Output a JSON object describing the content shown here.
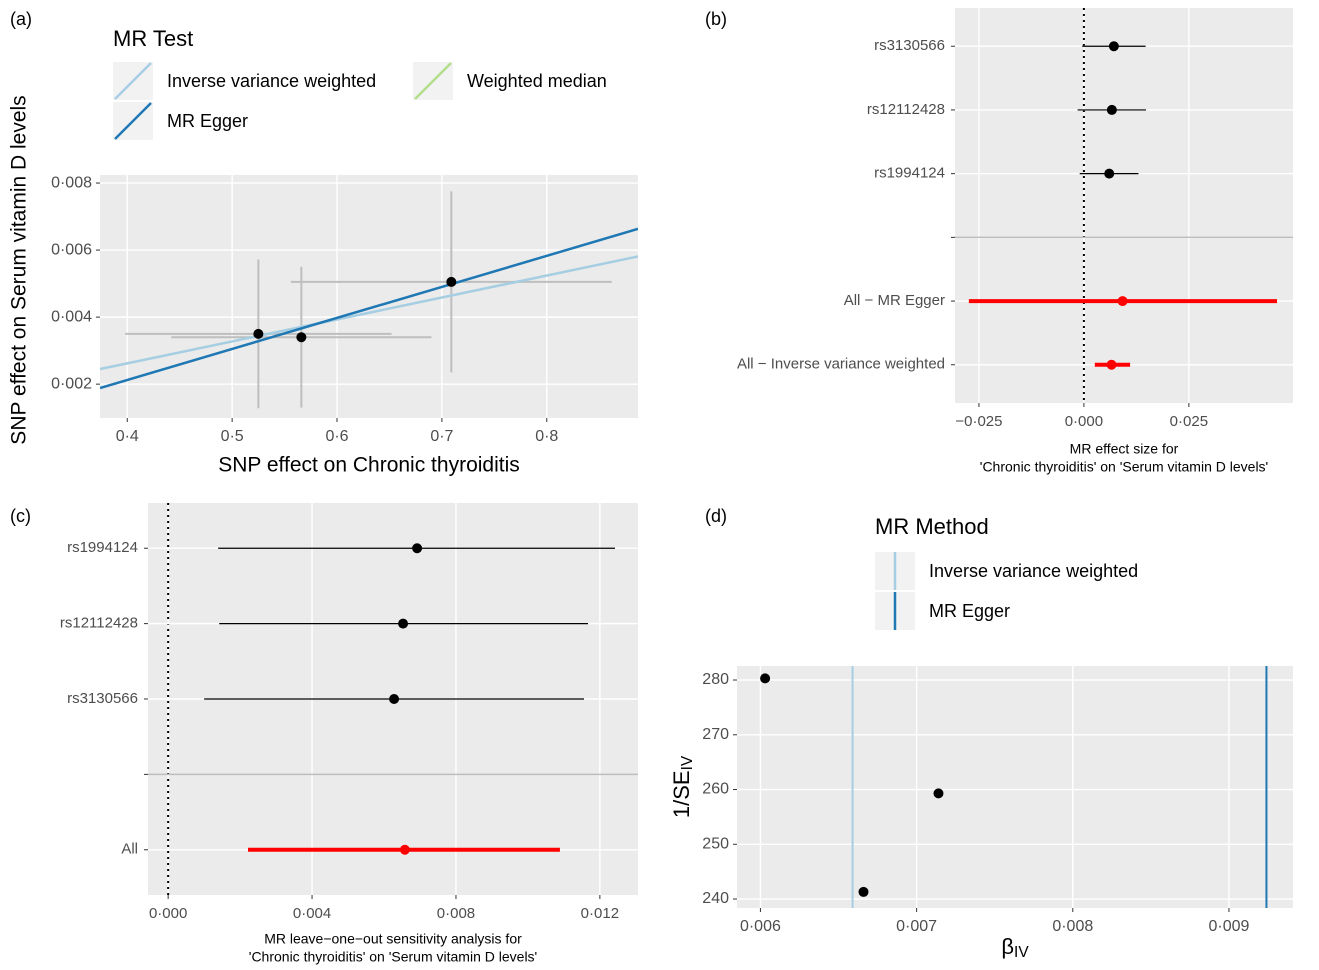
{
  "chart_data": [
    {
      "type": "scatter",
      "panel_label": "(a)",
      "xlabel": "SNP effect on Chronic thyroiditis",
      "ylabel": "SNP effect on Serum vitamin D levels",
      "x": [
        0.525,
        0.566,
        0.709
      ],
      "values": [
        0.0035,
        0.0034,
        0.00505
      ],
      "x_err": [
        0.127,
        0.124,
        0.153
      ],
      "y_err": [
        0.00222,
        0.0021,
        0.0027
      ],
      "color": "#000000",
      "err_color": "#bebebe",
      "legend_title": "MR Test",
      "lines": [
        {
          "name": "Inverse variance weighted",
          "color": "#a6cee3",
          "slope": 0.00655,
          "intercept": 0
        },
        {
          "name": "MR Egger",
          "color": "#1f78b4",
          "slope": 0.00926,
          "intercept": -0.00158
        },
        {
          "name": "Weighted median",
          "color": "#b2df8a"
        }
      ],
      "xlim": [
        0.374,
        0.887
      ],
      "ylim": [
        0.00099,
        0.00824
      ],
      "xticks": [
        {
          "value": 0.4,
          "label": "0·4"
        },
        {
          "value": 0.5,
          "label": "0·5"
        },
        {
          "value": 0.6,
          "label": "0·6"
        },
        {
          "value": 0.7,
          "label": "0·7"
        },
        {
          "value": 0.8,
          "label": "0·8"
        }
      ],
      "yticks": [
        {
          "value": 0.002,
          "label": "0·002"
        },
        {
          "value": 0.004,
          "label": "0·004"
        },
        {
          "value": 0.006,
          "label": "0·006"
        },
        {
          "value": 0.008,
          "label": "0·008"
        }
      ],
      "grid": true
    },
    {
      "type": "forest",
      "panel_label": "(b)",
      "xlabel": [
        "MR effect size for",
        "'Chronic thyroiditis' on 'Serum vitamin D levels'"
      ],
      "categories": [
        "rs3130566",
        "rs12112428",
        "rs1994124",
        null,
        "All − MR Egger",
        "All − Inverse variance weighted"
      ],
      "values": [
        0.00714,
        0.00666,
        0.00603,
        null,
        0.00921,
        0.00658
      ],
      "lower": [
        -0.0004,
        -0.0015,
        -0.001,
        null,
        -0.0274,
        0.0026
      ],
      "upper": [
        0.0147,
        0.0148,
        0.013,
        null,
        0.046,
        0.011
      ],
      "colors": [
        "#000000",
        "#000000",
        "#000000",
        null,
        "#ff0000",
        "#ff0000"
      ],
      "refline": 0,
      "xlim": [
        -0.0307,
        0.0498
      ],
      "xticks": [
        {
          "value": -0.025,
          "label": "−0·025"
        },
        {
          "value": 0,
          "label": "0·000"
        },
        {
          "value": 0.025,
          "label": "0·025"
        }
      ],
      "grid": true
    },
    {
      "type": "forest",
      "panel_label": "(c)",
      "xlabel": [
        "MR leave−one−out sensitivity analysis for",
        "'Chronic thyroiditis' on 'Serum vitamin D levels'"
      ],
      "categories": [
        "rs1994124",
        "rs12112428",
        "rs3130566",
        null,
        "All"
      ],
      "values": [
        0.00692,
        0.00653,
        0.00628,
        null,
        0.00658
      ],
      "lower": [
        0.00139,
        0.00142,
        0.001,
        null,
        0.00222
      ],
      "upper": [
        0.01242,
        0.01167,
        0.01156,
        null,
        0.01089
      ],
      "colors": [
        "#000000",
        "#000000",
        "#000000",
        null,
        "#ff0000"
      ],
      "refline": 0,
      "xlim": [
        -0.00056,
        0.01306
      ],
      "xticks": [
        {
          "value": 0,
          "label": "0·000"
        },
        {
          "value": 0.004,
          "label": "0·004"
        },
        {
          "value": 0.008,
          "label": "0·008"
        },
        {
          "value": 0.012,
          "label": "0·012"
        }
      ],
      "grid": true
    },
    {
      "type": "scatter",
      "panel_label": "(d)",
      "xlabel": "β",
      "xlabel_sub": "IV",
      "ylabel": "1/SE",
      "ylabel_sub": "IV",
      "x": [
        0.00603,
        0.00714,
        0.00666
      ],
      "values": [
        280.3,
        259.3,
        241.3
      ],
      "color": "#000000",
      "legend_title": "MR Method",
      "vlines": [
        {
          "name": "Inverse variance weighted",
          "color": "#a6cee3",
          "value": 0.00659
        },
        {
          "name": "MR Egger",
          "color": "#1f78b4",
          "value": 0.00924
        }
      ],
      "xlim": [
        0.00585,
        0.00941
      ],
      "ylim": [
        238.36,
        282.56
      ],
      "xticks": [
        {
          "value": 0.006,
          "label": "0·006"
        },
        {
          "value": 0.007,
          "label": "0·007"
        },
        {
          "value": 0.008,
          "label": "0·008"
        },
        {
          "value": 0.009,
          "label": "0·009"
        }
      ],
      "yticks": [
        240,
        250,
        260,
        270,
        280
      ],
      "grid": true
    }
  ]
}
